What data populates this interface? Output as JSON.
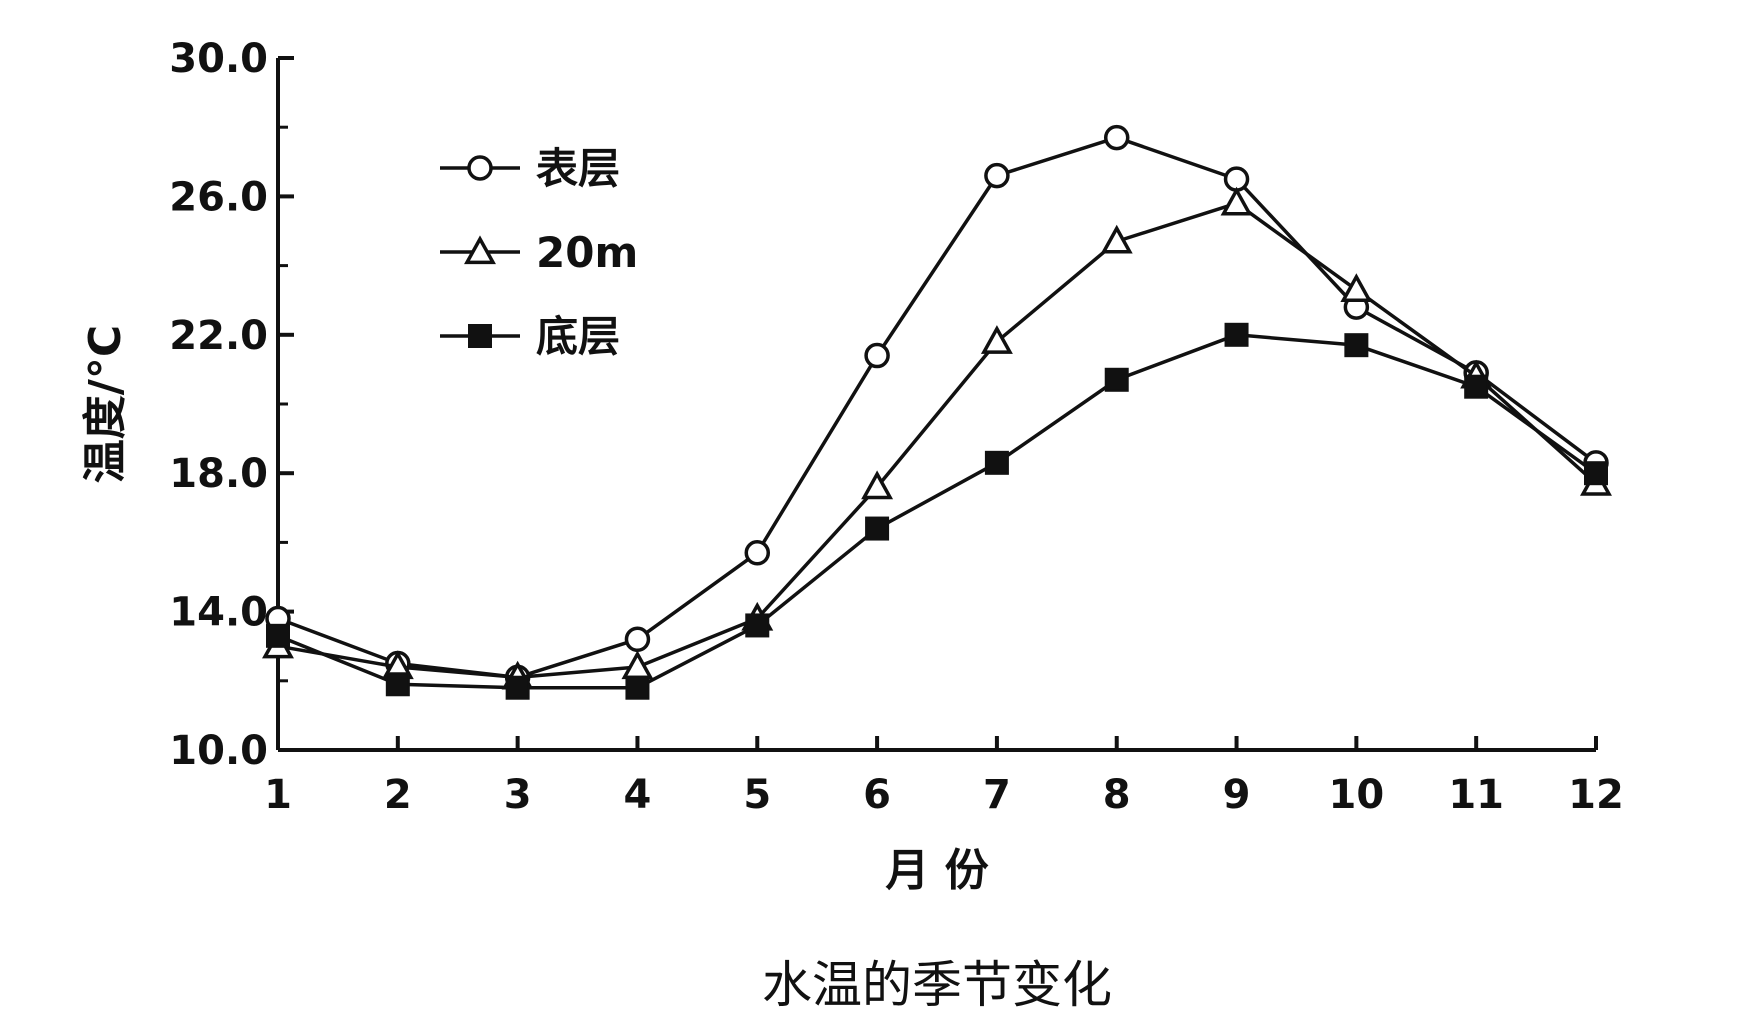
{
  "chart_data": {
    "type": "line",
    "title": "水温的季节变化",
    "xlabel": "月 份",
    "ylabel": "温度/°C",
    "x": [
      1,
      2,
      3,
      4,
      5,
      6,
      7,
      8,
      9,
      10,
      11,
      12
    ],
    "x_ticks": [
      "1",
      "2",
      "3",
      "4",
      "5",
      "6",
      "7",
      "8",
      "9",
      "10",
      "11",
      "12"
    ],
    "ylim": [
      10.0,
      30.0
    ],
    "y_ticks": [
      "10.0",
      "14.0",
      "18.0",
      "22.0",
      "26.0",
      "30.0"
    ],
    "grid": false,
    "legend_position": "top-left",
    "series": [
      {
        "name": "表层",
        "marker": "circle-open",
        "values": [
          13.8,
          12.5,
          12.1,
          13.2,
          15.7,
          21.4,
          26.6,
          27.7,
          26.5,
          22.8,
          20.9,
          18.3
        ]
      },
      {
        "name": "20m",
        "marker": "triangle-open",
        "values": [
          13.0,
          12.4,
          12.1,
          12.4,
          13.8,
          17.6,
          21.8,
          24.7,
          25.8,
          23.3,
          20.8,
          17.7
        ]
      },
      {
        "name": "底层",
        "marker": "square-filled",
        "values": [
          13.3,
          11.9,
          11.8,
          11.8,
          13.6,
          16.4,
          18.3,
          20.7,
          22.0,
          21.7,
          20.5,
          18.0
        ]
      }
    ],
    "colors": {
      "line": "#111111",
      "marker_fill_open": "#ffffff",
      "marker_fill_solid": "#111111",
      "background": "#ffffff"
    }
  }
}
